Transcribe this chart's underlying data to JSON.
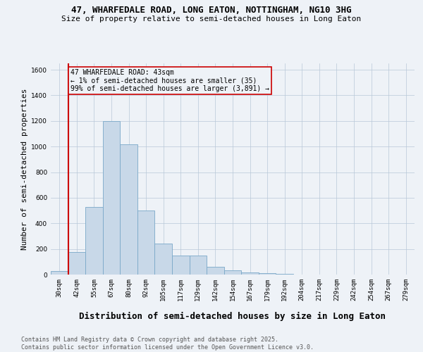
{
  "title_line1": "47, WHARFEDALE ROAD, LONG EATON, NOTTINGHAM, NG10 3HG",
  "title_line2": "Size of property relative to semi-detached houses in Long Eaton",
  "xlabel": "Distribution of semi-detached houses by size in Long Eaton",
  "ylabel": "Number of semi-detached properties",
  "bar_color": "#c8d8e8",
  "bar_edgecolor": "#7aa8c8",
  "annotation_box_color": "#cc0000",
  "annotation_text": "47 WHARFEDALE ROAD: 43sqm\n← 1% of semi-detached houses are smaller (35)\n99% of semi-detached houses are larger (3,891) →",
  "marker_line_color": "#cc0000",
  "categories": [
    "30sqm",
    "42sqm",
    "55sqm",
    "67sqm",
    "80sqm",
    "92sqm",
    "105sqm",
    "117sqm",
    "129sqm",
    "142sqm",
    "154sqm",
    "167sqm",
    "179sqm",
    "192sqm",
    "204sqm",
    "217sqm",
    "229sqm",
    "242sqm",
    "254sqm",
    "267sqm",
    "279sqm"
  ],
  "values": [
    30,
    175,
    530,
    1200,
    1020,
    500,
    240,
    150,
    150,
    60,
    35,
    15,
    10,
    5,
    2,
    1,
    0,
    0,
    0,
    0,
    0
  ],
  "ylim": [
    0,
    1650
  ],
  "yticks": [
    0,
    200,
    400,
    600,
    800,
    1000,
    1200,
    1400,
    1600
  ],
  "footnote": "Contains HM Land Registry data © Crown copyright and database right 2025.\nContains public sector information licensed under the Open Government Licence v3.0.",
  "bg_color": "#eef2f7",
  "grid_color": "#b8c8d8",
  "title_fontsize": 9,
  "subtitle_fontsize": 8,
  "axis_label_fontsize": 8,
  "tick_fontsize": 6.5,
  "footnote_fontsize": 6,
  "annot_fontsize": 7
}
